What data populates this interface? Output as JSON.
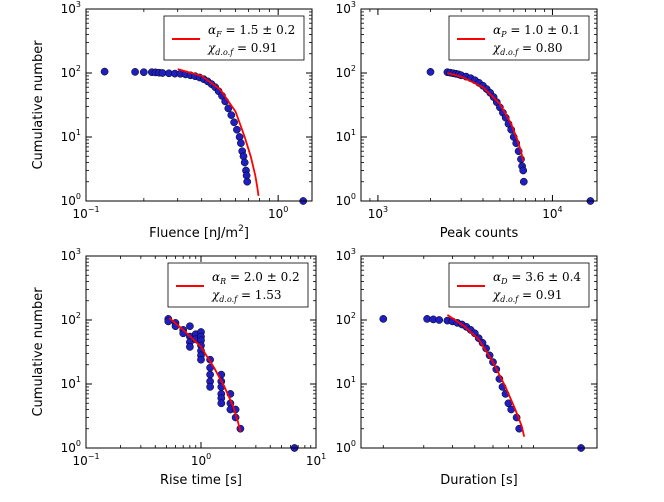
{
  "colors": {
    "scatter": "#1f1fbf",
    "scatter_edge": "#000000",
    "fit_line": "#ff0000"
  },
  "chart_data": [
    {
      "type": "scatter",
      "id": "fluence",
      "xscale": "log",
      "yscale": "log",
      "xlim": [
        0.1,
        1.5
      ],
      "ylim": [
        1,
        1000
      ],
      "xticks": [
        {
          "v": 0.1,
          "base": "10",
          "exp": "−1"
        },
        {
          "v": 1,
          "base": "10",
          "exp": "0"
        }
      ],
      "yticks": [
        {
          "v": 1,
          "base": "10",
          "exp": "0"
        },
        {
          "v": 10,
          "base": "10",
          "exp": "1"
        },
        {
          "v": 100,
          "base": "10",
          "exp": "2"
        },
        {
          "v": 1000,
          "base": "10",
          "exp": "3"
        }
      ],
      "xlabel": "Fluence [nJ/m",
      "xlabel_sup": "2",
      "xlabel_end": "]",
      "ylabel": "Cumulative number",
      "legend": {
        "alpha_sub": "F",
        "alpha_val": "= 1.5 ± 0.2",
        "chi_sub": "d.o.f",
        "chi_val": "= 0.91"
      },
      "series": [
        {
          "name": "data",
          "points": [
            [
              0.125,
              105
            ],
            [
              0.18,
              104
            ],
            [
              0.2,
              103
            ],
            [
              0.22,
              103
            ],
            [
              0.23,
              102
            ],
            [
              0.24,
              101
            ],
            [
              0.25,
              100
            ],
            [
              0.27,
              99
            ],
            [
              0.29,
              98
            ],
            [
              0.31,
              97
            ],
            [
              0.33,
              95
            ],
            [
              0.35,
              92
            ],
            [
              0.37,
              89
            ],
            [
              0.39,
              85
            ],
            [
              0.41,
              80
            ],
            [
              0.43,
              74
            ],
            [
              0.45,
              67
            ],
            [
              0.47,
              60
            ],
            [
              0.49,
              52
            ],
            [
              0.51,
              44
            ],
            [
              0.53,
              36
            ],
            [
              0.55,
              28
            ],
            [
              0.57,
              22
            ],
            [
              0.59,
              17
            ],
            [
              0.61,
              13
            ],
            [
              0.63,
              10
            ],
            [
              0.64,
              8
            ],
            [
              0.65,
              6
            ],
            [
              0.66,
              5
            ],
            [
              0.67,
              4
            ],
            [
              0.68,
              3
            ],
            [
              0.685,
              2.5
            ],
            [
              0.69,
              2
            ],
            [
              1.35,
              1
            ]
          ]
        },
        {
          "name": "fit",
          "type": "line",
          "points": [
            [
              0.3,
              115
            ],
            [
              0.4,
              90
            ],
            [
              0.5,
              55
            ],
            [
              0.6,
              25
            ],
            [
              0.67,
              10
            ],
            [
              0.72,
              5
            ],
            [
              0.76,
              2.5
            ],
            [
              0.78,
              1.6
            ],
            [
              0.79,
              1.2
            ]
          ]
        }
      ]
    },
    {
      "type": "scatter",
      "id": "peak",
      "xscale": "log",
      "yscale": "log",
      "xlim": [
        800,
        18000
      ],
      "ylim": [
        1,
        1000
      ],
      "xticks": [
        {
          "v": 1000,
          "base": "10",
          "exp": "3"
        },
        {
          "v": 10000,
          "base": "10",
          "exp": "4"
        }
      ],
      "yticks": [
        {
          "v": 1,
          "base": "10",
          "exp": "0"
        },
        {
          "v": 10,
          "base": "10",
          "exp": "1"
        },
        {
          "v": 100,
          "base": "10",
          "exp": "2"
        },
        {
          "v": 1000,
          "base": "10",
          "exp": "3"
        }
      ],
      "xlabel": "Peak counts",
      "xlabel_sup": "",
      "xlabel_end": "",
      "ylabel": "",
      "legend": {
        "alpha_sub": "P",
        "alpha_val": "= 1.0 ± 0.1",
        "chi_sub": "d.o.f",
        "chi_val": "= 0.80"
      },
      "series": [
        {
          "name": "data",
          "points": [
            [
              2000,
              104
            ],
            [
              2500,
              103
            ],
            [
              2600,
              101
            ],
            [
              2700,
              99
            ],
            [
              2800,
              97
            ],
            [
              2900,
              95
            ],
            [
              3000,
              92
            ],
            [
              3200,
              88
            ],
            [
              3400,
              83
            ],
            [
              3600,
              77
            ],
            [
              3800,
              70
            ],
            [
              4000,
              63
            ],
            [
              4200,
              56
            ],
            [
              4400,
              49
            ],
            [
              4600,
              42
            ],
            [
              4800,
              35
            ],
            [
              5000,
              29
            ],
            [
              5200,
              24
            ],
            [
              5400,
              20
            ],
            [
              5600,
              16
            ],
            [
              5800,
              13
            ],
            [
              6000,
              10
            ],
            [
              6200,
              8
            ],
            [
              6400,
              6
            ],
            [
              6600,
              4.5
            ],
            [
              6700,
              3.5
            ],
            [
              6800,
              3
            ],
            [
              6850,
              2
            ],
            [
              16500,
              1
            ]
          ]
        },
        {
          "name": "fit",
          "type": "line",
          "points": [
            [
              2500,
              100
            ],
            [
              3000,
              88
            ],
            [
              4000,
              60
            ],
            [
              5000,
              33
            ],
            [
              5800,
              16
            ],
            [
              6300,
              9
            ],
            [
              6600,
              6
            ],
            [
              6800,
              4.2
            ]
          ]
        }
      ]
    },
    {
      "type": "scatter",
      "id": "rise",
      "xscale": "log",
      "yscale": "log",
      "xlim": [
        0.1,
        10
      ],
      "ylim": [
        1,
        1000
      ],
      "xticks": [
        {
          "v": 0.1,
          "base": "10",
          "exp": "−1"
        },
        {
          "v": 1,
          "base": "10",
          "exp": "0"
        },
        {
          "v": 10,
          "base": "10",
          "exp": "1"
        }
      ],
      "yticks": [
        {
          "v": 1,
          "base": "10",
          "exp": "0"
        },
        {
          "v": 10,
          "base": "10",
          "exp": "1"
        },
        {
          "v": 100,
          "base": "10",
          "exp": "2"
        },
        {
          "v": 1000,
          "base": "10",
          "exp": "3"
        }
      ],
      "xlabel": "Rise time [s]",
      "xlabel_sup": "",
      "xlabel_end": "",
      "ylabel": "Cumulative number",
      "legend": {
        "alpha_sub": "R",
        "alpha_val": "= 2.0 ± 0.2",
        "chi_sub": "d.o.f",
        "chi_val": "= 1.53"
      },
      "series": [
        {
          "name": "data",
          "points": [
            [
              0.52,
              104
            ],
            [
              0.52,
              95
            ],
            [
              0.6,
              90
            ],
            [
              0.6,
              80
            ],
            [
              0.7,
              70
            ],
            [
              0.7,
              62
            ],
            [
              0.8,
              80
            ],
            [
              0.8,
              55
            ],
            [
              0.8,
              45
            ],
            [
              0.8,
              38
            ],
            [
              0.9,
              60
            ],
            [
              0.9,
              50
            ],
            [
              1.0,
              65
            ],
            [
              1.0,
              55
            ],
            [
              1.0,
              48
            ],
            [
              1.0,
              40
            ],
            [
              1.0,
              33
            ],
            [
              1.0,
              28
            ],
            [
              1.0,
              24
            ],
            [
              1.2,
              24
            ],
            [
              1.2,
              18
            ],
            [
              1.2,
              14
            ],
            [
              1.2,
              11
            ],
            [
              1.2,
              9
            ],
            [
              1.5,
              14
            ],
            [
              1.5,
              11
            ],
            [
              1.5,
              9
            ],
            [
              1.5,
              7
            ],
            [
              1.5,
              6
            ],
            [
              1.5,
              5
            ],
            [
              1.8,
              7
            ],
            [
              1.8,
              5
            ],
            [
              1.8,
              4
            ],
            [
              2.0,
              3
            ],
            [
              2.0,
              4
            ],
            [
              2.2,
              2
            ],
            [
              6.5,
              1
            ]
          ]
        },
        {
          "name": "fit",
          "type": "line",
          "points": [
            [
              0.53,
              108
            ],
            [
              0.7,
              70
            ],
            [
              1.0,
              38
            ],
            [
              1.3,
              18
            ],
            [
              1.6,
              9
            ],
            [
              1.9,
              4.5
            ],
            [
              2.1,
              2.5
            ],
            [
              2.2,
              1.8
            ]
          ]
        }
      ]
    },
    {
      "type": "scatter",
      "id": "duration",
      "xscale": "log",
      "yscale": "log",
      "xlim": [
        1.6,
        17
      ],
      "ylim": [
        1,
        1000
      ],
      "xticks": [],
      "yticks": [
        {
          "v": 1,
          "base": "10",
          "exp": "0"
        },
        {
          "v": 10,
          "base": "10",
          "exp": "1"
        },
        {
          "v": 100,
          "base": "10",
          "exp": "2"
        },
        {
          "v": 1000,
          "base": "10",
          "exp": "3"
        }
      ],
      "xlabel": "Duration [s]",
      "xlabel_sup": "",
      "xlabel_end": "",
      "ylabel": "",
      "legend": {
        "alpha_sub": "D",
        "alpha_val": "= 3.6 ± 0.4",
        "chi_sub": "d.o.f",
        "chi_val": "= 0.91"
      },
      "series": [
        {
          "name": "data",
          "points": [
            [
              2.0,
              104
            ],
            [
              3.1,
              104
            ],
            [
              3.3,
              102
            ],
            [
              3.5,
              100
            ],
            [
              3.8,
              98
            ],
            [
              4.0,
              95
            ],
            [
              4.2,
              90
            ],
            [
              4.4,
              85
            ],
            [
              4.6,
              78
            ],
            [
              4.8,
              70
            ],
            [
              5.0,
              62
            ],
            [
              5.2,
              52
            ],
            [
              5.4,
              44
            ],
            [
              5.6,
              36
            ],
            [
              5.8,
              28
            ],
            [
              6.0,
              22
            ],
            [
              6.2,
              17
            ],
            [
              6.4,
              12
            ],
            [
              6.6,
              9
            ],
            [
              6.8,
              7
            ],
            [
              7.0,
              5
            ],
            [
              7.2,
              4
            ],
            [
              7.6,
              3
            ],
            [
              7.8,
              2
            ],
            [
              14.5,
              1
            ]
          ]
        },
        {
          "name": "fit",
          "type": "line",
          "points": [
            [
              3.8,
              120
            ],
            [
              4.5,
              80
            ],
            [
              5.2,
              50
            ],
            [
              6.0,
              22
            ],
            [
              6.8,
              9
            ],
            [
              7.5,
              4
            ],
            [
              8.0,
              2.2
            ],
            [
              8.2,
              1.5
            ]
          ]
        }
      ]
    }
  ]
}
